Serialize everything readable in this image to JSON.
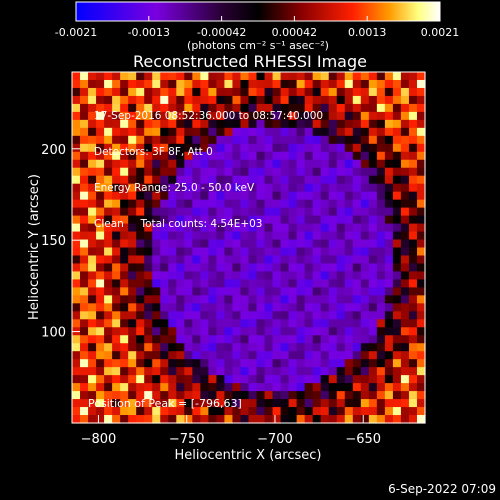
{
  "colorbar": {
    "ticks": [
      "-0.0021",
      "-0.0013",
      "-0.00042",
      "0.00042",
      "0.0013",
      "0.0021"
    ],
    "unit_label": "(photons cm⁻² s⁻¹ asec⁻²)",
    "colors": [
      "#0000ff",
      "#7a00e0",
      "#2a0035",
      "#000000",
      "#8a0000",
      "#ff2000",
      "#ff9a00",
      "#ffff80",
      "#ffffff"
    ]
  },
  "chart_data": {
    "type": "heatmap",
    "title": "Reconstructed RHESSI Image",
    "xlabel": "Heliocentric X (arcsec)",
    "ylabel": "Heliocentric Y (arcsec)",
    "xlim": [
      -815,
      -615
    ],
    "ylim": [
      50,
      242
    ],
    "x_ticks": [
      -800,
      -750,
      -700,
      -650
    ],
    "y_ticks": [
      100,
      150,
      200
    ],
    "annotations": [
      "17-Sep-2016 08:52:36.000 to 08:57:40.000",
      "Detectors: 3F 8F, Att 0",
      "Energy Range: 25.0 - 50.0 keV",
      "Clean     Total counts: 4.54E+03"
    ],
    "peak_label": "Position of Peak = [-796,63]",
    "peak_position": [
      -796,
      63
    ]
  },
  "footer": {
    "timestamp": "6-Sep-2022 07:09"
  }
}
